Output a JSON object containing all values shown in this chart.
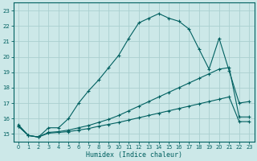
{
  "xlabel": "Humidex (Indice chaleur)",
  "background_color": "#cce8e8",
  "grid_color": "#aacfcf",
  "line_color": "#006060",
  "xlim": [
    -0.5,
    23.5
  ],
  "ylim": [
    14.5,
    23.5
  ],
  "yticks": [
    15,
    16,
    17,
    18,
    19,
    20,
    21,
    22,
    23
  ],
  "xticks": [
    0,
    1,
    2,
    3,
    4,
    5,
    6,
    7,
    8,
    9,
    10,
    11,
    12,
    13,
    14,
    15,
    16,
    17,
    18,
    19,
    20,
    21,
    22,
    23
  ],
  "series1_x": [
    0,
    1,
    2,
    3,
    4,
    5,
    6,
    7,
    8,
    9,
    10,
    11,
    12,
    13,
    14,
    15,
    16,
    17,
    18,
    19,
    20,
    21,
    22,
    23
  ],
  "series1_y": [
    15.6,
    14.9,
    14.8,
    15.4,
    15.4,
    16.0,
    17.0,
    17.8,
    18.5,
    19.3,
    20.1,
    21.2,
    22.2,
    22.5,
    22.8,
    22.5,
    22.3,
    21.8,
    20.5,
    19.2,
    21.2,
    19.1,
    17.0,
    17.1
  ],
  "series2_x": [
    0,
    1,
    2,
    3,
    4,
    5,
    6,
    7,
    8,
    9,
    10,
    11,
    12,
    13,
    14,
    15,
    16,
    17,
    18,
    19,
    20,
    21,
    22,
    23
  ],
  "series2_y": [
    15.5,
    14.9,
    14.8,
    15.1,
    15.15,
    15.25,
    15.4,
    15.55,
    15.75,
    15.95,
    16.2,
    16.5,
    16.8,
    17.1,
    17.4,
    17.7,
    18.0,
    18.3,
    18.6,
    18.9,
    19.2,
    19.3,
    16.1,
    16.1
  ],
  "series3_x": [
    0,
    1,
    2,
    3,
    4,
    5,
    6,
    7,
    8,
    9,
    10,
    11,
    12,
    13,
    14,
    15,
    16,
    17,
    18,
    19,
    20,
    21,
    22,
    23
  ],
  "series3_y": [
    15.5,
    14.9,
    14.8,
    15.05,
    15.1,
    15.15,
    15.25,
    15.35,
    15.5,
    15.62,
    15.75,
    15.9,
    16.05,
    16.2,
    16.35,
    16.5,
    16.65,
    16.8,
    16.95,
    17.1,
    17.25,
    17.4,
    15.8,
    15.8
  ]
}
